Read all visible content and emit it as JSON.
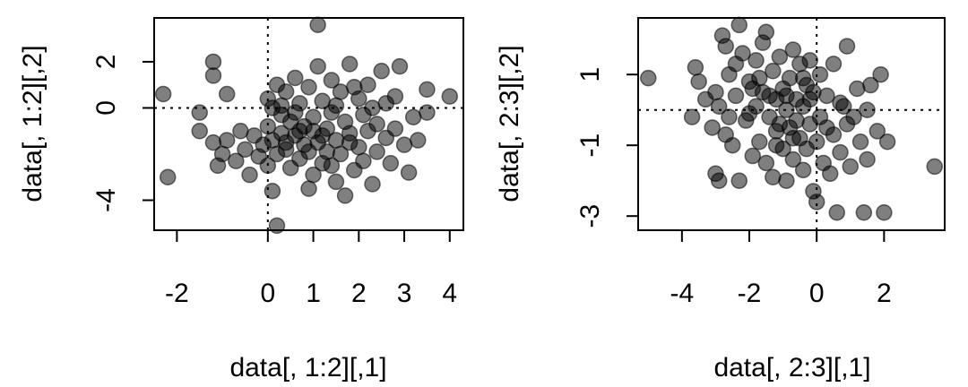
{
  "chart_data": [
    {
      "type": "scatter",
      "xlabel": "data[, 1:2][,1]",
      "ylabel": "data[, 1:2][,2]",
      "xlim": [
        -2.5,
        4.3
      ],
      "ylim": [
        -5.3,
        3.9
      ],
      "xticks": [
        -2,
        0,
        1,
        2,
        3,
        4
      ],
      "xtick_labels": [
        "-2",
        "0",
        "1",
        "2",
        "3",
        "4"
      ],
      "yticks": [
        -4,
        0,
        2
      ],
      "ytick_labels": [
        "-4",
        "0",
        "2"
      ],
      "ref_lines": {
        "x": 0,
        "y": 0
      },
      "marker_color": "#000000",
      "grid": false,
      "points": [
        [
          -2.3,
          0.6
        ],
        [
          -2.2,
          -3.0
        ],
        [
          -1.5,
          -1.0
        ],
        [
          -1.5,
          -0.2
        ],
        [
          -1.2,
          2.0
        ],
        [
          -1.2,
          1.4
        ],
        [
          -1.2,
          -1.5
        ],
        [
          -1.1,
          -2.5
        ],
        [
          -1.0,
          -2.0
        ],
        [
          -0.9,
          0.6
        ],
        [
          -0.9,
          -1.4
        ],
        [
          -0.7,
          -2.3
        ],
        [
          -0.6,
          -1.0
        ],
        [
          -0.5,
          -1.8
        ],
        [
          -0.4,
          -2.9
        ],
        [
          -0.3,
          -1.2
        ],
        [
          -0.2,
          -2.1
        ],
        [
          -0.1,
          -1.6
        ],
        [
          0.0,
          0.4
        ],
        [
          0.0,
          -0.8
        ],
        [
          0.0,
          -2.5
        ],
        [
          0.1,
          0.0
        ],
        [
          0.1,
          -1.4
        ],
        [
          0.1,
          -3.6
        ],
        [
          0.2,
          -5.1
        ],
        [
          0.2,
          -2.0
        ],
        [
          0.3,
          -0.3
        ],
        [
          0.3,
          -1.1
        ],
        [
          0.4,
          0.7
        ],
        [
          0.4,
          -1.8
        ],
        [
          0.5,
          -0.6
        ],
        [
          0.5,
          -2.6
        ],
        [
          0.6,
          1.3
        ],
        [
          0.6,
          -1.2
        ],
        [
          0.7,
          0.2
        ],
        [
          0.7,
          -2.2
        ],
        [
          0.8,
          -0.8
        ],
        [
          0.8,
          -1.6
        ],
        [
          0.9,
          0.9
        ],
        [
          0.9,
          -3.5
        ],
        [
          1.0,
          -0.4
        ],
        [
          1.0,
          -1.0
        ],
        [
          1.0,
          -2.9
        ],
        [
          1.1,
          1.8
        ],
        [
          1.1,
          -1.5
        ],
        [
          1.1,
          3.6
        ],
        [
          1.2,
          0.3
        ],
        [
          1.2,
          -2.4
        ],
        [
          1.3,
          -0.9
        ],
        [
          1.3,
          -1.9
        ],
        [
          1.4,
          1.2
        ],
        [
          1.4,
          -0.2
        ],
        [
          1.5,
          -1.4
        ],
        [
          1.5,
          -3.2
        ],
        [
          1.6,
          0.7
        ],
        [
          1.6,
          -2.0
        ],
        [
          1.7,
          -0.6
        ],
        [
          1.7,
          -3.8
        ],
        [
          1.8,
          1.9
        ],
        [
          1.8,
          -1.1
        ],
        [
          1.9,
          -2.7
        ],
        [
          2.0,
          0.4
        ],
        [
          2.0,
          -1.7
        ],
        [
          2.1,
          -0.3
        ],
        [
          2.1,
          -2.3
        ],
        [
          2.2,
          1.0
        ],
        [
          2.2,
          -1.0
        ],
        [
          2.3,
          -3.3
        ],
        [
          2.4,
          -0.7
        ],
        [
          2.4,
          -1.9
        ],
        [
          2.5,
          1.6
        ],
        [
          2.6,
          -1.3
        ],
        [
          2.7,
          -2.4
        ],
        [
          2.8,
          0.5
        ],
        [
          2.8,
          -0.9
        ],
        [
          2.9,
          1.8
        ],
        [
          3.0,
          -1.6
        ],
        [
          3.1,
          -2.8
        ],
        [
          3.2,
          -0.4
        ],
        [
          3.3,
          -1.4
        ],
        [
          3.5,
          0.8
        ],
        [
          3.5,
          -0.2
        ],
        [
          4.0,
          0.5
        ],
        [
          0.3,
          0.1
        ],
        [
          0.6,
          -0.2
        ],
        [
          1.5,
          0.1
        ],
        [
          0.9,
          -1.9
        ],
        [
          1.2,
          -1.2
        ],
        [
          0.4,
          -1.5
        ],
        [
          1.8,
          -1.5
        ],
        [
          2.3,
          0.0
        ],
        [
          0.7,
          -1.0
        ],
        [
          1.4,
          -2.5
        ],
        [
          2.6,
          0.2
        ],
        [
          0.2,
          1.0
        ],
        [
          1.9,
          0.9
        ]
      ]
    },
    {
      "type": "scatter",
      "xlabel": "data[, 2:3][,1]",
      "ylabel": "data[, 2:3][,2]",
      "xlim": [
        -5.3,
        3.8
      ],
      "ylim": [
        -3.4,
        2.6
      ],
      "xticks": [
        -4,
        -2,
        0,
        2
      ],
      "xtick_labels": [
        "-4",
        "-2",
        "0",
        "2"
      ],
      "yticks": [
        -3,
        -1,
        1
      ],
      "ytick_labels": [
        "-3",
        "-1",
        "1"
      ],
      "ref_lines": {
        "x": 0,
        "y": 0
      },
      "marker_color": "#000000",
      "grid": false,
      "points": [
        [
          -5.0,
          0.9
        ],
        [
          -3.7,
          -0.2
        ],
        [
          -3.6,
          1.2
        ],
        [
          -3.5,
          0.8
        ],
        [
          -3.3,
          0.3
        ],
        [
          -3.1,
          -0.5
        ],
        [
          -3.0,
          -1.8
        ],
        [
          -3.0,
          0.5
        ],
        [
          -2.9,
          -2.0
        ],
        [
          -2.9,
          0.1
        ],
        [
          -2.8,
          2.1
        ],
        [
          -2.7,
          1.8
        ],
        [
          -2.7,
          -0.7
        ],
        [
          -2.6,
          1.0
        ],
        [
          -2.5,
          -1.0
        ],
        [
          -2.4,
          0.4
        ],
        [
          -2.3,
          2.4
        ],
        [
          -2.3,
          -2.0
        ],
        [
          -2.2,
          1.6
        ],
        [
          -2.1,
          -0.3
        ],
        [
          -2.0,
          0.8
        ],
        [
          -1.9,
          -1.3
        ],
        [
          -1.8,
          1.4
        ],
        [
          -1.8,
          0.1
        ],
        [
          -1.7,
          -0.9
        ],
        [
          -1.6,
          1.9
        ],
        [
          -1.6,
          0.5
        ],
        [
          -1.5,
          -1.5
        ],
        [
          -1.5,
          2.2
        ],
        [
          -1.4,
          -0.2
        ],
        [
          -1.3,
          1.1
        ],
        [
          -1.3,
          -1.9
        ],
        [
          -1.2,
          0.3
        ],
        [
          -1.2,
          -0.6
        ],
        [
          -1.1,
          1.5
        ],
        [
          -1.0,
          -1.1
        ],
        [
          -1.0,
          0.6
        ],
        [
          -0.9,
          -2.0
        ],
        [
          -0.9,
          0.0
        ],
        [
          -0.8,
          0.9
        ],
        [
          -0.8,
          -0.5
        ],
        [
          -0.7,
          1.7
        ],
        [
          -0.7,
          -1.4
        ],
        [
          -0.6,
          0.3
        ],
        [
          -0.5,
          -0.8
        ],
        [
          -0.5,
          1.3
        ],
        [
          -0.4,
          -1.7
        ],
        [
          -0.4,
          0.1
        ],
        [
          -0.3,
          0.7
        ],
        [
          -0.3,
          -1.1
        ],
        [
          -0.2,
          1.4
        ],
        [
          -0.2,
          -0.4
        ],
        [
          -0.1,
          -2.3
        ],
        [
          -0.1,
          0.5
        ],
        [
          0.0,
          -0.9
        ],
        [
          0.0,
          -2.6
        ],
        [
          0.1,
          1.0
        ],
        [
          0.1,
          -0.2
        ],
        [
          0.2,
          -1.5
        ],
        [
          0.3,
          0.4
        ],
        [
          0.4,
          -1.8
        ],
        [
          0.5,
          1.3
        ],
        [
          0.5,
          -0.7
        ],
        [
          0.6,
          -2.9
        ],
        [
          0.7,
          0.2
        ],
        [
          0.7,
          -1.2
        ],
        [
          0.9,
          1.8
        ],
        [
          0.9,
          -0.4
        ],
        [
          1.0,
          -1.6
        ],
        [
          1.2,
          0.6
        ],
        [
          1.3,
          -0.9
        ],
        [
          1.4,
          -2.9
        ],
        [
          1.5,
          0.0
        ],
        [
          1.5,
          -1.4
        ],
        [
          1.6,
          0.7
        ],
        [
          1.8,
          -0.6
        ],
        [
          1.9,
          1.0
        ],
        [
          2.0,
          -2.9
        ],
        [
          2.1,
          -0.9
        ],
        [
          3.5,
          -1.6
        ],
        [
          -2.0,
          -0.1
        ],
        [
          -1.4,
          0.4
        ],
        [
          -0.6,
          -0.3
        ],
        [
          -1.1,
          -0.4
        ],
        [
          -0.2,
          0.3
        ],
        [
          -1.7,
          0.9
        ],
        [
          -0.9,
          0.4
        ],
        [
          -2.6,
          -0.2
        ],
        [
          0.3,
          -0.5
        ],
        [
          -0.4,
          0.9
        ],
        [
          -1.9,
          0.6
        ],
        [
          0.8,
          0.1
        ],
        [
          -1.2,
          -1.0
        ],
        [
          1.1,
          -0.2
        ],
        [
          -2.4,
          1.3
        ],
        [
          -0.7,
          -0.8
        ]
      ]
    }
  ]
}
